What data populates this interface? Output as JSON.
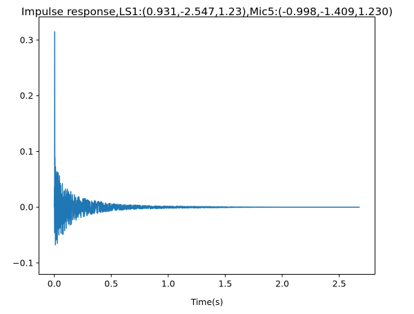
{
  "chart_data": {
    "type": "line",
    "title": "Impulse response,LS1:(0.931,-2.547,1.23),Mic5:(-0.998,-1.409,1.230)",
    "xlabel": "Time(s)",
    "ylabel": "",
    "xlim": [
      -0.134,
      2.814
    ],
    "ylim": [
      -0.1205,
      0.3415
    ],
    "xticks": [
      0.0,
      0.5,
      1.0,
      1.5,
      2.0,
      2.5
    ],
    "xtick_labels": [
      "0.0",
      "0.5",
      "1.0",
      "1.5",
      "2.0",
      "2.5"
    ],
    "yticks": [
      -0.1,
      0.0,
      0.1,
      0.2,
      0.3
    ],
    "ytick_labels": [
      "−0.1",
      "0.0",
      "0.1",
      "0.2",
      "0.3"
    ],
    "grid": false,
    "series": [
      {
        "name": "impulse response",
        "color": "#1f77b4",
        "description": "decaying noise-like room impulse response",
        "peak": {
          "t": 0.004,
          "value": 0.315
        },
        "duration_s": 2.68,
        "envelope": {
          "t": [
            0.0,
            0.01,
            0.02,
            0.05,
            0.1,
            0.2,
            0.3,
            0.4,
            0.5,
            0.6,
            0.7,
            0.8,
            1.0,
            1.2,
            1.4,
            1.6,
            2.0,
            2.68
          ],
          "pos": [
            0.09,
            0.09,
            0.085,
            0.055,
            0.035,
            0.02,
            0.014,
            0.01,
            0.007,
            0.005,
            0.004,
            0.003,
            0.002,
            0.0015,
            0.001,
            0.0004,
            0.0,
            0.0
          ],
          "neg": [
            -0.098,
            -0.095,
            -0.085,
            -0.06,
            -0.04,
            -0.022,
            -0.015,
            -0.01,
            -0.007,
            -0.005,
            -0.004,
            -0.003,
            -0.002,
            -0.0015,
            -0.001,
            -0.0004,
            0.0,
            0.0
          ]
        }
      }
    ]
  }
}
